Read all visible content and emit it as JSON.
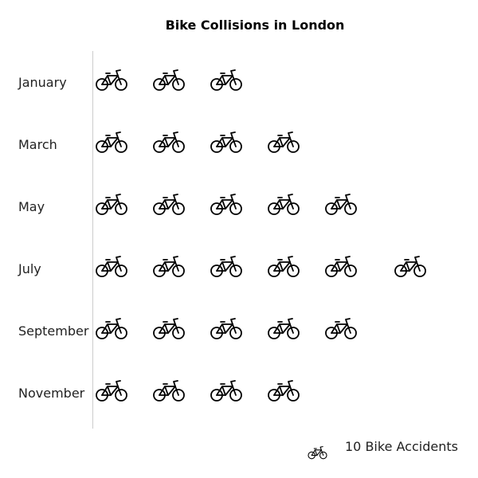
{
  "chart_data": {
    "type": "pictograph",
    "title": "Bike Collisions in London",
    "categories": [
      "January",
      "March",
      "May",
      "July",
      "September",
      "November"
    ],
    "values": [
      30,
      40,
      50,
      60,
      50,
      40
    ],
    "unit_value": 10,
    "icon": "bicycle-icon",
    "legend": {
      "label": "10 Bike Accidents",
      "placement": "bottom-right"
    },
    "colors": {
      "icon": "#000000",
      "axis": "#cccccc",
      "text": "#222222"
    }
  }
}
